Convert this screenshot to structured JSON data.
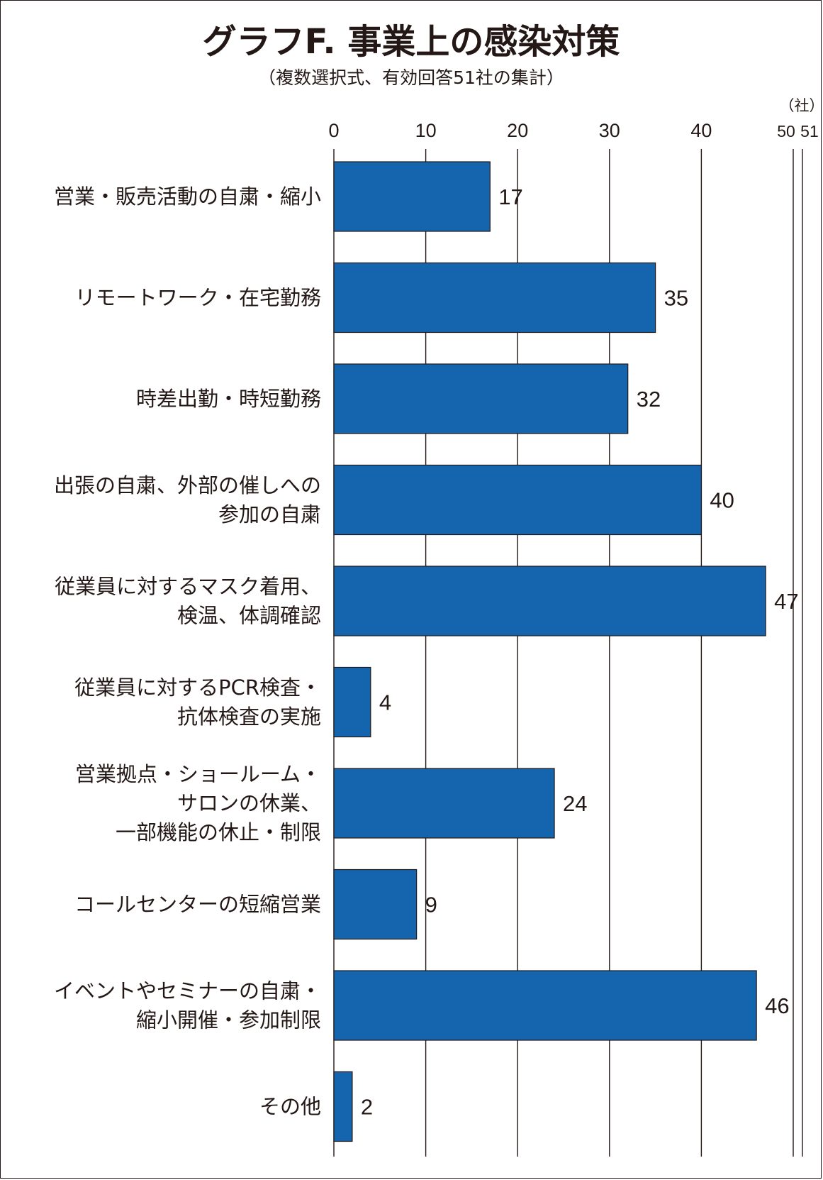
{
  "chart_data": {
    "type": "bar",
    "orientation": "horizontal",
    "title": "グラフF. 事業上の感染対策",
    "subtitle": "（複数選択式、有効回答51社の集計）",
    "unit_label": "（社）",
    "xlim": [
      0,
      51
    ],
    "x_ticks": [
      "0",
      "10",
      "20",
      "30",
      "40",
      "50",
      "51"
    ],
    "bar_color": "#1565ae",
    "grid": true,
    "categories": [
      [
        "営業・販売活動の自粛・縮小"
      ],
      [
        "リモートワーク・在宅勤務"
      ],
      [
        "時差出勤・時短勤務"
      ],
      [
        "出張の自粛、外部の催しへの",
        "参加の自粛"
      ],
      [
        "従業員に対するマスク着用、",
        "検温、体調確認"
      ],
      [
        "従業員に対するPCR検査・",
        "抗体検査の実施"
      ],
      [
        "営業拠点・ショールーム・",
        "サロンの休業、",
        "一部機能の休止・制限"
      ],
      [
        "コールセンターの短縮営業"
      ],
      [
        "イベントやセミナーの自粛・",
        "縮小開催・参加制限"
      ],
      [
        "その他"
      ]
    ],
    "values": [
      17,
      35,
      32,
      40,
      47,
      4,
      24,
      9,
      46,
      2
    ]
  }
}
